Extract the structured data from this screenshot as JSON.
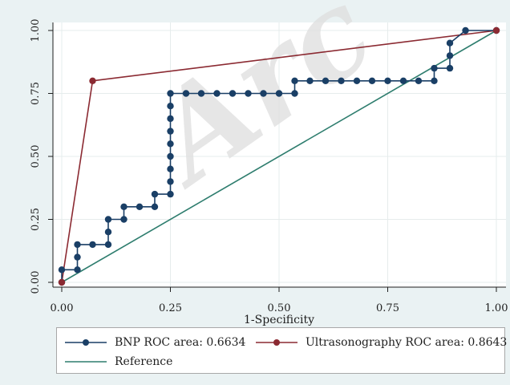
{
  "chart_data": {
    "type": "line",
    "xlabel": "1-Specificity",
    "ylabel": "",
    "xlim": [
      0,
      1
    ],
    "ylim": [
      0,
      1
    ],
    "x_ticks": [
      "0.00",
      "0.25",
      "0.50",
      "0.75",
      "1.00"
    ],
    "y_ticks": [
      "0.00",
      "0.25",
      "0.50",
      "0.75",
      "1.00"
    ],
    "grid": true,
    "legend_position": "bottom",
    "watermark": "Arc",
    "series": [
      {
        "name": "BNP ROC area: 0.6634",
        "color": "#1a3f66",
        "markers": true,
        "points": [
          [
            0,
            0
          ],
          [
            0,
            0.05
          ],
          [
            0.036,
            0.05
          ],
          [
            0.036,
            0.1
          ],
          [
            0.036,
            0.15
          ],
          [
            0.071,
            0.15
          ],
          [
            0.107,
            0.15
          ],
          [
            0.107,
            0.2
          ],
          [
            0.107,
            0.25
          ],
          [
            0.143,
            0.25
          ],
          [
            0.143,
            0.3
          ],
          [
            0.179,
            0.3
          ],
          [
            0.214,
            0.3
          ],
          [
            0.214,
            0.35
          ],
          [
            0.25,
            0.35
          ],
          [
            0.25,
            0.4
          ],
          [
            0.25,
            0.45
          ],
          [
            0.25,
            0.5
          ],
          [
            0.25,
            0.55
          ],
          [
            0.25,
            0.6
          ],
          [
            0.25,
            0.65
          ],
          [
            0.25,
            0.7
          ],
          [
            0.25,
            0.75
          ],
          [
            0.286,
            0.75
          ],
          [
            0.321,
            0.75
          ],
          [
            0.357,
            0.75
          ],
          [
            0.393,
            0.75
          ],
          [
            0.429,
            0.75
          ],
          [
            0.464,
            0.75
          ],
          [
            0.5,
            0.75
          ],
          [
            0.536,
            0.75
          ],
          [
            0.536,
            0.8
          ],
          [
            0.571,
            0.8
          ],
          [
            0.607,
            0.8
          ],
          [
            0.643,
            0.8
          ],
          [
            0.679,
            0.8
          ],
          [
            0.714,
            0.8
          ],
          [
            0.75,
            0.8
          ],
          [
            0.786,
            0.8
          ],
          [
            0.821,
            0.8
          ],
          [
            0.857,
            0.8
          ],
          [
            0.857,
            0.85
          ],
          [
            0.893,
            0.85
          ],
          [
            0.893,
            0.9
          ],
          [
            0.893,
            0.95
          ],
          [
            0.929,
            1.0
          ],
          [
            1.0,
            1.0
          ]
        ]
      },
      {
        "name": "Ultrasonography ROC area: 0.8643",
        "color": "#8b2a32",
        "markers": true,
        "points": [
          [
            0,
            0
          ],
          [
            0.071,
            0.8
          ],
          [
            1.0,
            1.0
          ]
        ]
      },
      {
        "name": "Reference",
        "color": "#2e7d6e",
        "markers": false,
        "points": [
          [
            0,
            0
          ],
          [
            1,
            1
          ]
        ]
      }
    ]
  }
}
